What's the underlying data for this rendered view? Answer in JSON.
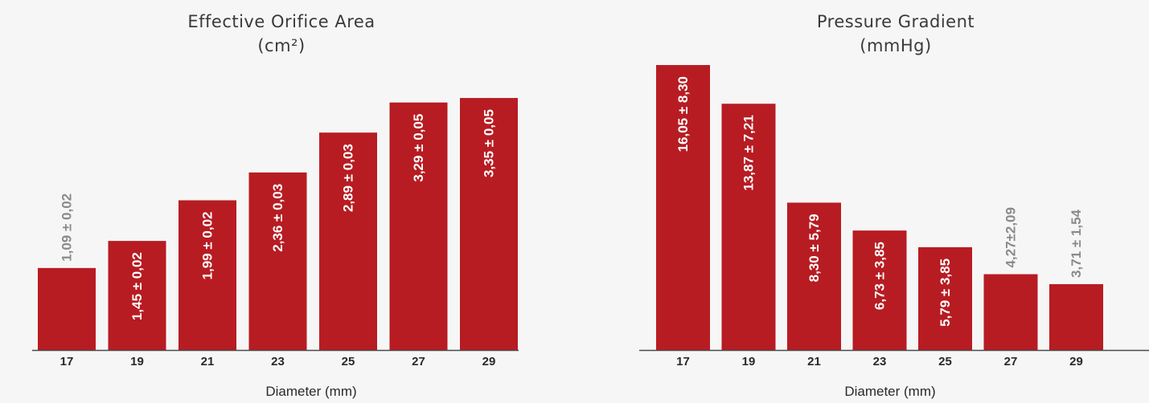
{
  "colors": {
    "bar": "#b71c22",
    "label_inside": "#ffffff",
    "label_outside": "#8a8a8a",
    "axis": "#4a4a4a",
    "text": "#2a2a2a",
    "background": "#f6f6f6"
  },
  "chart_data": [
    {
      "type": "bar",
      "title": "Effective Orifice Area",
      "subtitle": "(cm²)",
      "xlabel": "Diameter (mm)",
      "ylabel": "",
      "categories": [
        "17",
        "19",
        "21",
        "23",
        "25",
        "27",
        "29"
      ],
      "values": [
        1.09,
        1.45,
        1.99,
        2.36,
        2.89,
        3.29,
        3.35
      ],
      "labels": [
        "1,09 ± 0,02",
        "1,45 ± 0,02",
        "1,99 ± 0,02",
        "2,36 ± 0,03",
        "2,89 ± 0,03",
        "3,29 ± 0,05",
        "3,35 ± 0,05"
      ],
      "label_inside": [
        false,
        true,
        true,
        true,
        true,
        true,
        true
      ],
      "ylim": [
        0,
        3.5
      ],
      "grid": false
    },
    {
      "type": "bar",
      "title": "Pressure Gradient",
      "subtitle": "(mmHg)",
      "xlabel": "Diameter (mm)",
      "ylabel": "",
      "categories": [
        "17",
        "19",
        "21",
        "23",
        "25",
        "27",
        "29"
      ],
      "values": [
        16.05,
        13.87,
        8.3,
        6.73,
        5.79,
        4.27,
        3.71
      ],
      "labels": [
        "16,05 ± 8,30",
        "13,87 ± 7,21",
        "8,30 ± 5,79",
        "6,73 ± 3,85",
        "5,79 ± 3,85",
        "4,27±2,09",
        "3,71 ± 1,54"
      ],
      "label_inside": [
        true,
        true,
        true,
        true,
        true,
        false,
        false
      ],
      "ylim": [
        0,
        17
      ],
      "grid": false
    }
  ]
}
